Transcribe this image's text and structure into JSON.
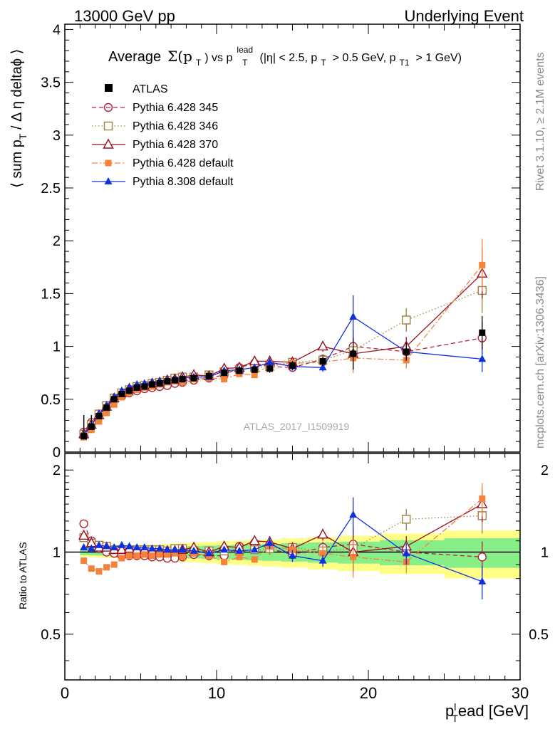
{
  "header": {
    "left": "13000 GeV pp",
    "right": "Underlying Event"
  },
  "side_labels": {
    "rivet": "Rivet 3.1.10, ≥ 2.1M events",
    "mcplots": "mcplots.cern.ch [arXiv:1306.3436]"
  },
  "watermark": "ATLAS_2017_I1509919",
  "colors": {
    "atlas": "#000000",
    "p345": "#b2233a",
    "p346": "#a08040",
    "p370": "#9b0f1f",
    "pdef6": "#f5823a",
    "pdef8": "#1030e0",
    "band_inner": "#88ee88",
    "band_outer": "#ffff88"
  },
  "chart_data": [
    {
      "type": "line",
      "panel": "main",
      "title": "Average Σ(p_T) vs p_T^lead (|η| < 2.5, p_T > 0.5 GeV, p_T1 > 1 GeV)",
      "title_parts": {
        "t1": "Average",
        "t2": "Σ(p",
        "t3": "T",
        "t4": ") vs p",
        "t5": "lead",
        "t6": "T",
        "t7": "(|η| < 2.5, p",
        "t8": "T",
        "t9": "> 0.5 GeV, p",
        "t10": "T1",
        "t11": "> 1 GeV)"
      },
      "ylabel": "⟨ sum p_T / Δ η deltaϕ ⟩",
      "ylabel_parts": {
        "a": "⟨ sum p",
        "b": "T",
        "c": " / Δ η deltaϕ ⟩"
      },
      "xlim": [
        0,
        30
      ],
      "ylim": [
        0,
        4.05
      ],
      "yticks": [
        "0",
        "0.5",
        "1",
        "1.5",
        "2",
        "2.5",
        "3",
        "3.5",
        "4"
      ],
      "grid": false,
      "legend_position": "top-left",
      "legend": [
        "ATLAS",
        "Pythia 6.428 345",
        "Pythia 6.428 346",
        "Pythia 6.428 370",
        "Pythia 6.428 default",
        "Pythia 8.308 default"
      ],
      "series": [
        {
          "name": "ATLAS",
          "x": [
            1.25,
            1.75,
            2.25,
            2.75,
            3.25,
            3.75,
            4.25,
            4.75,
            5.25,
            5.75,
            6.25,
            6.75,
            7.25,
            7.75,
            8.5,
            9.5,
            10.5,
            11.5,
            12.5,
            13.5,
            15,
            17,
            19,
            22.5,
            27.5
          ],
          "y": [
            0.15,
            0.24,
            0.34,
            0.42,
            0.5,
            0.55,
            0.58,
            0.61,
            0.62,
            0.64,
            0.65,
            0.67,
            0.68,
            0.69,
            0.7,
            0.72,
            0.75,
            0.77,
            0.78,
            0.79,
            0.82,
            0.86,
            0.93,
            0.95,
            1.13
          ]
        },
        {
          "name": "Pythia 6.428 345",
          "x": [
            1.25,
            1.75,
            2.25,
            2.75,
            3.25,
            3.75,
            4.25,
            4.75,
            5.25,
            5.75,
            6.25,
            6.75,
            7.25,
            7.75,
            8.5,
            9.5,
            10.5,
            11.5,
            12.5,
            13.5,
            15,
            17,
            19,
            22.5,
            27.5
          ],
          "y": [
            0.19,
            0.28,
            0.36,
            0.42,
            0.49,
            0.53,
            0.56,
            0.58,
            0.6,
            0.61,
            0.62,
            0.63,
            0.65,
            0.66,
            0.68,
            0.7,
            0.73,
            0.8,
            0.84,
            0.81,
            0.8,
            0.88,
            1.0,
            0.95,
            1.08
          ]
        },
        {
          "name": "Pythia 6.428 346",
          "x": [
            1.25,
            1.75,
            2.25,
            2.75,
            3.25,
            3.75,
            4.25,
            4.75,
            5.25,
            5.75,
            6.25,
            6.75,
            7.25,
            7.75,
            8.5,
            9.5,
            10.5,
            11.5,
            12.5,
            13.5,
            15,
            17,
            19,
            22.5,
            27.5
          ],
          "y": [
            0.17,
            0.26,
            0.36,
            0.44,
            0.51,
            0.56,
            0.59,
            0.62,
            0.63,
            0.65,
            0.66,
            0.68,
            0.7,
            0.71,
            0.71,
            0.73,
            0.76,
            0.78,
            0.8,
            0.81,
            0.85,
            0.87,
            0.96,
            1.25,
            1.53
          ]
        },
        {
          "name": "Pythia 6.428 370",
          "x": [
            1.25,
            1.75,
            2.25,
            2.75,
            3.25,
            3.75,
            4.25,
            4.75,
            5.25,
            5.75,
            6.25,
            6.75,
            7.25,
            7.75,
            8.5,
            9.5,
            10.5,
            11.5,
            12.5,
            13.5,
            15,
            17,
            19,
            22.5,
            27.5
          ],
          "y": [
            0.17,
            0.26,
            0.35,
            0.43,
            0.51,
            0.56,
            0.6,
            0.62,
            0.63,
            0.65,
            0.66,
            0.68,
            0.69,
            0.71,
            0.73,
            0.72,
            0.79,
            0.8,
            0.86,
            0.86,
            0.85,
            1.0,
            0.93,
            1.0,
            1.69
          ]
        },
        {
          "name": "Pythia 6.428 default",
          "x": [
            1.25,
            1.75,
            2.25,
            2.75,
            3.25,
            3.75,
            4.25,
            4.75,
            5.25,
            5.75,
            6.25,
            6.75,
            7.25,
            7.75,
            8.5,
            9.5,
            10.5,
            11.5,
            12.5,
            13.5,
            15,
            17,
            19,
            22.5,
            27.5
          ],
          "y": [
            0.14,
            0.21,
            0.29,
            0.37,
            0.45,
            0.52,
            0.56,
            0.59,
            0.61,
            0.62,
            0.64,
            0.66,
            0.67,
            0.66,
            0.69,
            0.7,
            0.69,
            0.74,
            0.73,
            0.83,
            0.84,
            0.85,
            0.89,
            0.87,
            1.77
          ]
        },
        {
          "name": "Pythia 8.308 default",
          "x": [
            1.25,
            1.75,
            2.25,
            2.75,
            3.25,
            3.75,
            4.25,
            4.75,
            5.25,
            5.75,
            6.25,
            6.75,
            7.25,
            7.75,
            8.5,
            9.5,
            10.5,
            11.5,
            12.5,
            13.5,
            15,
            17,
            19,
            22.5,
            27.5
          ],
          "y": [
            0.16,
            0.25,
            0.36,
            0.44,
            0.52,
            0.58,
            0.61,
            0.64,
            0.65,
            0.66,
            0.67,
            0.68,
            0.69,
            0.7,
            0.71,
            0.71,
            0.77,
            0.78,
            0.8,
            0.85,
            0.81,
            0.8,
            1.28,
            0.95,
            0.88
          ]
        }
      ]
    },
    {
      "type": "line",
      "panel": "ratio",
      "ylabel": "Ratio to ATLAS",
      "xlabel": "p_T^lead [GeV]",
      "xlabel_parts": {
        "a": "p",
        "b": "l",
        "c": "T",
        "d": "ead [GeV]"
      },
      "xlim": [
        0,
        30
      ],
      "ylim": [
        0.34,
        2.3
      ],
      "yticks_left": [
        "0.5",
        "1",
        "2"
      ],
      "yticks_right": [
        "0.5",
        "1",
        "2"
      ],
      "xticks": [
        "0",
        "10",
        "20",
        "30"
      ],
      "reference": 1,
      "series": [
        {
          "name": "Pythia 6.428 345",
          "x": [
            1.25,
            1.75,
            2.25,
            2.75,
            3.25,
            3.75,
            4.25,
            4.75,
            5.25,
            5.75,
            6.25,
            6.75,
            7.25,
            7.75,
            8.5,
            9.5,
            10.5,
            11.5,
            12.5,
            13.5,
            15,
            17,
            19,
            22.5,
            27.5
          ],
          "y": [
            1.27,
            1.1,
            1.03,
            1.0,
            0.99,
            0.97,
            0.97,
            0.97,
            0.97,
            0.96,
            0.96,
            0.95,
            0.95,
            0.96,
            0.98,
            0.97,
            0.97,
            1.05,
            1.08,
            1.03,
            0.98,
            1.04,
            1.07,
            1.0,
            0.96
          ]
        },
        {
          "name": "Pythia 6.428 346",
          "x": [
            1.25,
            1.75,
            2.25,
            2.75,
            3.25,
            3.75,
            4.25,
            4.75,
            5.25,
            5.75,
            6.25,
            6.75,
            7.25,
            7.75,
            8.5,
            9.5,
            10.5,
            11.5,
            12.5,
            13.5,
            15,
            17,
            19,
            22.5,
            27.5
          ],
          "y": [
            1.13,
            1.08,
            1.06,
            1.05,
            1.02,
            1.02,
            1.02,
            1.02,
            1.02,
            1.02,
            1.02,
            1.01,
            1.03,
            1.03,
            1.01,
            1.01,
            1.01,
            1.01,
            1.02,
            1.03,
            1.04,
            1.01,
            1.03,
            1.32,
            1.36
          ]
        },
        {
          "name": "Pythia 6.428 370",
          "x": [
            1.25,
            1.75,
            2.25,
            2.75,
            3.25,
            3.75,
            4.25,
            4.75,
            5.25,
            5.75,
            6.25,
            6.75,
            7.25,
            7.75,
            8.5,
            9.5,
            10.5,
            11.5,
            12.5,
            13.5,
            15,
            17,
            19,
            22.5,
            27.5
          ],
          "y": [
            1.15,
            1.08,
            1.04,
            1.04,
            1.02,
            1.02,
            1.03,
            1.02,
            1.02,
            1.01,
            1.01,
            1.01,
            1.01,
            1.02,
            1.04,
            1.0,
            1.05,
            1.04,
            1.1,
            1.09,
            1.03,
            1.16,
            1.0,
            1.05,
            1.5
          ]
        },
        {
          "name": "Pythia 6.428 default",
          "x": [
            1.25,
            1.75,
            2.25,
            2.75,
            3.25,
            3.75,
            4.25,
            4.75,
            5.25,
            5.75,
            6.25,
            6.75,
            7.25,
            7.75,
            8.5,
            9.5,
            10.5,
            11.5,
            12.5,
            13.5,
            15,
            17,
            19,
            22.5,
            27.5
          ],
          "y": [
            0.93,
            0.87,
            0.85,
            0.88,
            0.9,
            0.95,
            0.97,
            0.97,
            0.98,
            0.97,
            0.98,
            0.98,
            0.99,
            0.96,
            0.99,
            0.97,
            0.92,
            0.96,
            0.94,
            1.05,
            1.02,
            0.99,
            0.96,
            0.92,
            1.57
          ]
        },
        {
          "name": "Pythia 8.308 default",
          "x": [
            1.25,
            1.75,
            2.25,
            2.75,
            3.25,
            3.75,
            4.25,
            4.75,
            5.25,
            5.75,
            6.25,
            6.75,
            7.25,
            7.75,
            8.5,
            9.5,
            10.5,
            11.5,
            12.5,
            13.5,
            15,
            17,
            19,
            22.5,
            27.5
          ],
          "y": [
            1.04,
            1.03,
            1.06,
            1.05,
            1.04,
            1.06,
            1.05,
            1.04,
            1.04,
            1.03,
            1.03,
            1.02,
            1.02,
            1.02,
            1.01,
            0.99,
            1.02,
            1.01,
            1.02,
            1.08,
            0.97,
            0.93,
            1.37,
            0.99,
            0.78
          ]
        }
      ]
    }
  ]
}
